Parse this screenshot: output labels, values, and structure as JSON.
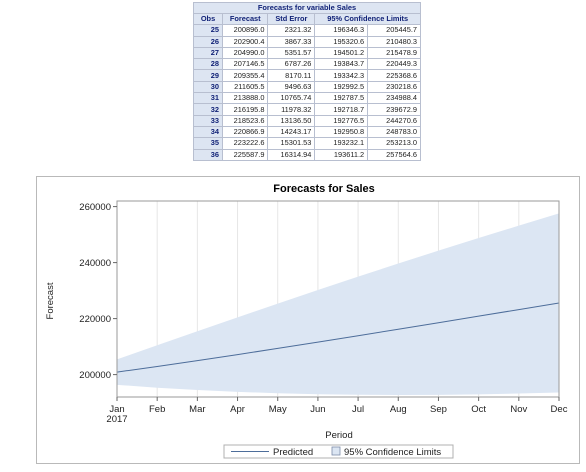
{
  "table": {
    "caption": "Forecasts for variable Sales",
    "headers": [
      "Obs",
      "Forecast",
      "Std Error",
      "95% Confidence Limits"
    ],
    "rows": [
      [
        "25",
        "200896.0",
        "2321.32",
        "196346.3",
        "205445.7"
      ],
      [
        "26",
        "202900.4",
        "3867.33",
        "195320.6",
        "210480.3"
      ],
      [
        "27",
        "204990.0",
        "5351.57",
        "194501.2",
        "215478.9"
      ],
      [
        "28",
        "207146.5",
        "6787.26",
        "193843.7",
        "220449.3"
      ],
      [
        "29",
        "209355.4",
        "8170.11",
        "193342.3",
        "225368.6"
      ],
      [
        "30",
        "211605.5",
        "9496.63",
        "192992.5",
        "230218.6"
      ],
      [
        "31",
        "213888.0",
        "10765.74",
        "192787.5",
        "234988.4"
      ],
      [
        "32",
        "216195.8",
        "11978.32",
        "192718.7",
        "239672.9"
      ],
      [
        "33",
        "218523.6",
        "13136.50",
        "192776.5",
        "244270.6"
      ],
      [
        "34",
        "220866.9",
        "14243.17",
        "192950.8",
        "248783.0"
      ],
      [
        "35",
        "223222.6",
        "15301.53",
        "193232.1",
        "253213.0"
      ],
      [
        "36",
        "225587.9",
        "16314.94",
        "193611.2",
        "257564.6"
      ]
    ]
  },
  "colors": {
    "band_fill": "#dce6f3",
    "line": "#4d6d9a",
    "grid": "#e6e6e6",
    "table_header_bg": "#dde5f2",
    "table_header_text": "#112277"
  },
  "chart_data": {
    "type": "line",
    "title": "Forecasts for Sales",
    "xlabel": "Period",
    "ylabel": "Forecast",
    "x": [
      "Jan",
      "Feb",
      "Mar",
      "Apr",
      "May",
      "Jun",
      "Jul",
      "Aug",
      "Sep",
      "Oct",
      "Nov",
      "Dec"
    ],
    "x_year_label": "2017",
    "ylim": [
      192000,
      262000
    ],
    "yticks": [
      200000,
      220000,
      240000,
      260000
    ],
    "ytick_labels": [
      "200000",
      "220000",
      "240000",
      "260000"
    ],
    "grid": "vertical",
    "legend_position": "bottom",
    "series": [
      {
        "name": "Predicted",
        "values": [
          200896.0,
          202900.4,
          204990.0,
          207146.5,
          209355.4,
          211605.5,
          213888.0,
          216195.8,
          218523.6,
          220866.9,
          223222.6,
          225587.9
        ]
      }
    ],
    "band": {
      "name": "95% Confidence Limits",
      "lower": [
        196346.3,
        195320.6,
        194501.2,
        193843.7,
        193342.3,
        192992.5,
        192787.5,
        192718.7,
        192776.5,
        192950.8,
        193232.1,
        193611.2
      ],
      "upper": [
        205445.7,
        210480.3,
        215478.9,
        220449.3,
        225368.6,
        230218.6,
        234988.4,
        239672.9,
        244270.6,
        248783.0,
        253213.0,
        257564.6
      ]
    }
  }
}
